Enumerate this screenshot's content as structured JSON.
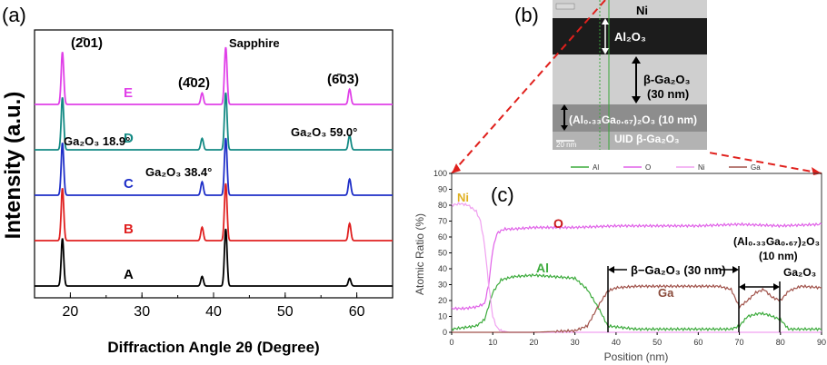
{
  "panel_a": {
    "label": "(a)",
    "chart_data": {
      "type": "line",
      "xlabel": "Diffraction Angle 2θ (Degree)",
      "ylabel": "Intensity (a.u.)",
      "xlim": [
        15,
        65
      ],
      "xticks": [
        "20",
        "30",
        "40",
        "50",
        "60"
      ],
      "grid": false,
      "series": [
        {
          "name": "A",
          "color": "#000000",
          "offset": 0
        },
        {
          "name": "B",
          "color": "#e02020",
          "offset": 1
        },
        {
          "name": "C",
          "color": "#1f2fc8",
          "offset": 2
        },
        {
          "name": "D",
          "color": "#138a84",
          "offset": 3
        },
        {
          "name": "E",
          "color": "#e040e8",
          "offset": 4
        }
      ],
      "peaks": [
        {
          "x": 18.9,
          "heights": [
            50,
            55,
            55,
            55,
            55
          ]
        },
        {
          "x": 38.4,
          "heights": [
            10,
            14,
            14,
            12,
            12
          ]
        },
        {
          "x": 41.7,
          "heights": [
            60,
            60,
            60,
            60,
            60
          ]
        },
        {
          "x": 59.0,
          "heights": [
            8,
            18,
            17,
            15,
            16
          ]
        }
      ],
      "annotations": {
        "sapphire": "Sapphire",
        "ga2o3_18": "Ga₂O₃ 18.9°",
        "ga2o3_38": "Ga₂O₃ 38.4°",
        "ga2o3_59": "Ga₂O₃ 59.0°",
        "hkl_201": "(2̄01)",
        "hkl_402": "(4̄02)",
        "hkl_603": "(6̄03)"
      }
    }
  },
  "panel_b": {
    "label": "(b)",
    "labels": {
      "ni": "Ni",
      "al2o3": "Al₂O₃",
      "bga2o3": "β-Ga₂O₃",
      "thick30": "(30 nm)",
      "algao": "(Al₀.₃₃Ga₀.₆₇)₂O₃  (10 nm)",
      "uid": "UID β-Ga₂O₃",
      "scale": "20 nm"
    }
  },
  "panel_c": {
    "label": "(c)",
    "chart_data": {
      "type": "line",
      "xlabel": "Position (nm)",
      "ylabel": "Atomic Ratio (%)",
      "xlim": [
        0,
        90
      ],
      "ylim": [
        0,
        100
      ],
      "xticks": [
        "0",
        "10",
        "20",
        "30",
        "40",
        "50",
        "60",
        "70",
        "80",
        "90"
      ],
      "yticks": [
        "0",
        "10",
        "20",
        "30",
        "40",
        "50",
        "60",
        "70",
        "80",
        "90",
        "100"
      ],
      "legend": [
        "Al",
        "O",
        "Ni",
        "Ga"
      ],
      "legend_placement": "top",
      "series": [
        {
          "name": "Al",
          "color": "#3cab3c",
          "x": [
            0,
            3,
            6,
            8,
            10,
            12,
            15,
            20,
            25,
            30,
            33,
            36,
            38,
            45,
            55,
            65,
            68,
            70,
            72,
            75,
            77,
            80,
            82,
            90
          ],
          "y": [
            2,
            3,
            4,
            8,
            25,
            33,
            35,
            36,
            35,
            34,
            27,
            14,
            4,
            2,
            2,
            2,
            2,
            4,
            10,
            12,
            11,
            8,
            2,
            2
          ]
        },
        {
          "name": "O",
          "color": "#e060e8",
          "x": [
            0,
            3,
            6,
            8,
            9,
            10,
            11,
            12,
            13,
            15,
            20,
            30,
            40,
            50,
            60,
            70,
            80,
            90
          ],
          "y": [
            15,
            15,
            16,
            18,
            30,
            52,
            62,
            64,
            65,
            65,
            66,
            66,
            67,
            67,
            67,
            68,
            67,
            68
          ]
        },
        {
          "name": "Ni",
          "color": "#f0a0f0",
          "x": [
            0,
            2,
            4,
            6,
            7,
            8,
            9,
            10,
            11,
            12,
            14,
            20,
            90
          ],
          "y": [
            80,
            81,
            80,
            76,
            70,
            55,
            30,
            10,
            3,
            1,
            0,
            0,
            0
          ]
        },
        {
          "name": "Ga",
          "color": "#a0524a",
          "x": [
            0,
            10,
            20,
            30,
            33,
            36,
            38,
            40,
            45,
            50,
            55,
            60,
            65,
            68,
            70,
            72,
            74,
            76,
            78,
            80,
            82,
            85,
            90
          ],
          "y": [
            0,
            0,
            0,
            1,
            4,
            18,
            26,
            28,
            29,
            29,
            29,
            29,
            29,
            27,
            16,
            20,
            25,
            27,
            22,
            20,
            26,
            29,
            28
          ]
        }
      ],
      "annotations": {
        "ni": "Ni",
        "o": "O",
        "al": "Al",
        "ga": "Ga",
        "bga2o3": "β−Ga₂O₃ (30 nm)",
        "algao": "(Al₀.₃₃Ga₀.₆₇)₂O₃",
        "algao_thick": "(10 nm)",
        "ga2o3": "Ga₂O₃"
      }
    }
  }
}
